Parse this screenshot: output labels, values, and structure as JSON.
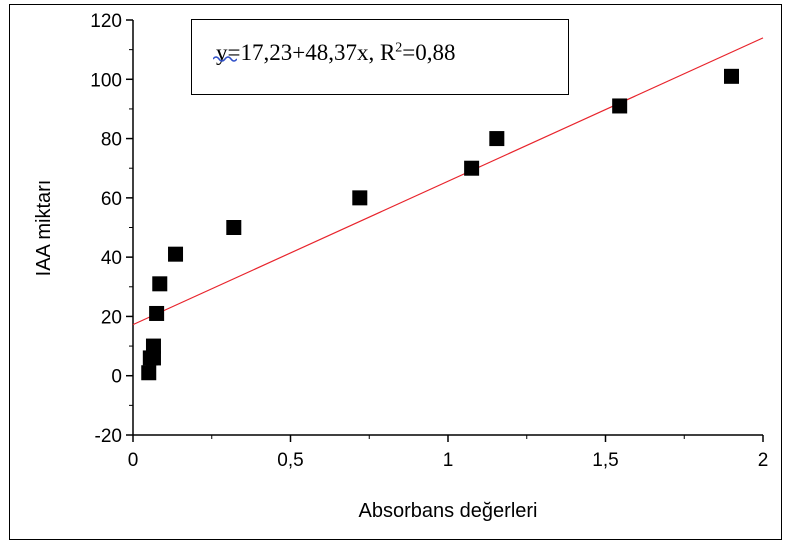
{
  "chart_data": {
    "type": "scatter",
    "xlabel": "Absorbans değerleri",
    "ylabel": "IAA miktarı",
    "xlim": [
      0,
      2
    ],
    "ylim": [
      -20,
      120
    ],
    "x_ticks": [
      "0",
      "0,5",
      "1",
      "1,5",
      "2"
    ],
    "y_ticks": [
      "-20",
      "0",
      "20",
      "40",
      "60",
      "80",
      "100",
      "120"
    ],
    "grid": false,
    "series": [
      {
        "marker": "square",
        "color": "#000000",
        "points": [
          {
            "x": 0.05,
            "y": 1
          },
          {
            "x": 0.055,
            "y": 6
          },
          {
            "x": 0.065,
            "y": 6
          },
          {
            "x": 0.065,
            "y": 10
          },
          {
            "x": 0.075,
            "y": 21
          },
          {
            "x": 0.085,
            "y": 31
          },
          {
            "x": 0.135,
            "y": 41
          },
          {
            "x": 0.32,
            "y": 50
          },
          {
            "x": 0.72,
            "y": 60
          },
          {
            "x": 1.075,
            "y": 70
          },
          {
            "x": 1.155,
            "y": 80
          },
          {
            "x": 1.545,
            "y": 91
          },
          {
            "x": 1.9,
            "y": 101
          }
        ]
      }
    ],
    "fit": {
      "type": "linear",
      "intercept": 17.23,
      "slope": 48.37,
      "color": "#e8242c"
    },
    "annotation": {
      "prefix": "y=17,23+48,37x, R",
      "sup": "2",
      "suffix": "=0,88"
    }
  }
}
